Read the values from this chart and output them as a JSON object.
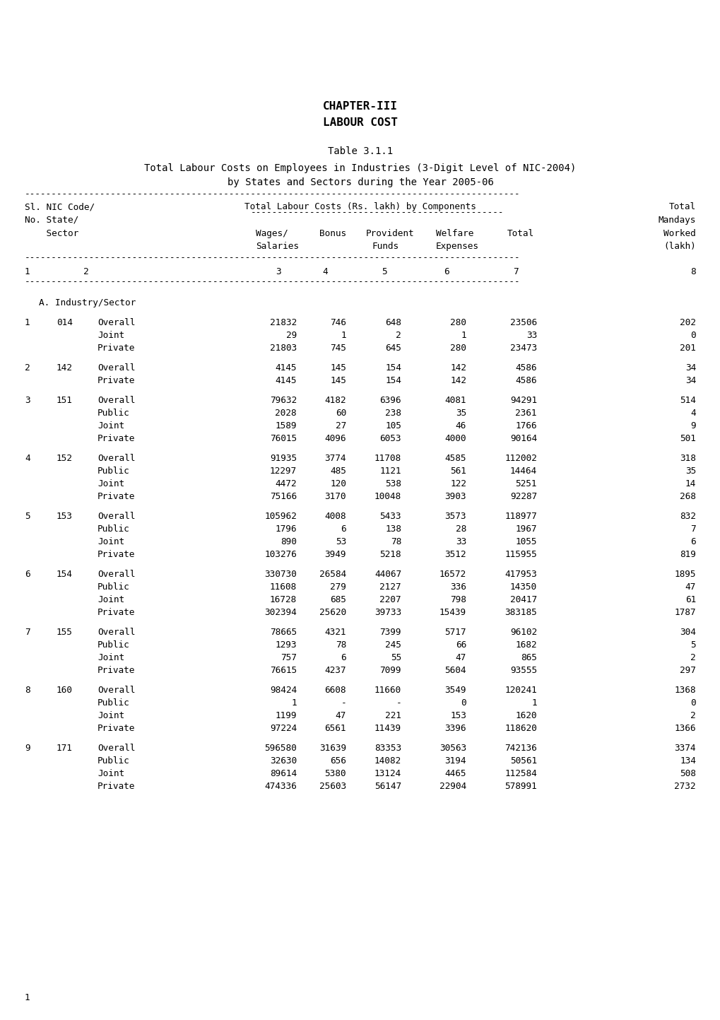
{
  "chapter_title_line1": "CHAPTER-III",
  "chapter_title_line2": "LABOUR COST",
  "table_title": "Table 3.1.1",
  "table_subtitle1": "Total Labour Costs on Employees in Industries (3-Digit Level of NIC-2004)",
  "table_subtitle2": "by States and Sectors during the Year 2005-06",
  "h1_col1": "Sl. NIC Code/",
  "h1_col2": "Total Labour Costs (Rs. lakh) by Components",
  "h1_col3": "Total",
  "h2_col1": "No. State/",
  "h2_col3": "Mandays",
  "h3_col1": "    Sector",
  "h3_wages": "Wages/",
  "h3_bonus": "Bonus",
  "h3_provident": "Provident",
  "h3_welfare": "Welfare",
  "h3_total": "Total",
  "h3_worked": "Worked",
  "h4_wages": "Salaries",
  "h4_provident": "Funds",
  "h4_welfare": "Expenses",
  "h4_worked": "(lakh)",
  "cn1": "1",
  "cn2": "2",
  "cn3": "3",
  "cn4": "4",
  "cn5": "5",
  "cn6": "6",
  "cn7": "7",
  "cn8": "8",
  "section_label": "A. Industry/Sector",
  "rows": [
    {
      "sl": "1",
      "nic": "014",
      "sector": "Overall",
      "wages": "21832",
      "bonus": "746",
      "provident": "648",
      "welfare": "280",
      "total": "23506",
      "mandays": "202"
    },
    {
      "sl": "",
      "nic": "",
      "sector": "Joint",
      "wages": "29",
      "bonus": "1",
      "provident": "2",
      "welfare": "1",
      "total": "33",
      "mandays": "0"
    },
    {
      "sl": "",
      "nic": "",
      "sector": "Private",
      "wages": "21803",
      "bonus": "745",
      "provident": "645",
      "welfare": "280",
      "total": "23473",
      "mandays": "201"
    },
    {
      "sl": "2",
      "nic": "142",
      "sector": "Overall",
      "wages": "4145",
      "bonus": "145",
      "provident": "154",
      "welfare": "142",
      "total": "4586",
      "mandays": "34"
    },
    {
      "sl": "",
      "nic": "",
      "sector": "Private",
      "wages": "4145",
      "bonus": "145",
      "provident": "154",
      "welfare": "142",
      "total": "4586",
      "mandays": "34"
    },
    {
      "sl": "3",
      "nic": "151",
      "sector": "Overall",
      "wages": "79632",
      "bonus": "4182",
      "provident": "6396",
      "welfare": "4081",
      "total": "94291",
      "mandays": "514"
    },
    {
      "sl": "",
      "nic": "",
      "sector": "Public",
      "wages": "2028",
      "bonus": "60",
      "provident": "238",
      "welfare": "35",
      "total": "2361",
      "mandays": "4"
    },
    {
      "sl": "",
      "nic": "",
      "sector": "Joint",
      "wages": "1589",
      "bonus": "27",
      "provident": "105",
      "welfare": "46",
      "total": "1766",
      "mandays": "9"
    },
    {
      "sl": "",
      "nic": "",
      "sector": "Private",
      "wages": "76015",
      "bonus": "4096",
      "provident": "6053",
      "welfare": "4000",
      "total": "90164",
      "mandays": "501"
    },
    {
      "sl": "4",
      "nic": "152",
      "sector": "Overall",
      "wages": "91935",
      "bonus": "3774",
      "provident": "11708",
      "welfare": "4585",
      "total": "112002",
      "mandays": "318"
    },
    {
      "sl": "",
      "nic": "",
      "sector": "Public",
      "wages": "12297",
      "bonus": "485",
      "provident": "1121",
      "welfare": "561",
      "total": "14464",
      "mandays": "35"
    },
    {
      "sl": "",
      "nic": "",
      "sector": "Joint",
      "wages": "4472",
      "bonus": "120",
      "provident": "538",
      "welfare": "122",
      "total": "5251",
      "mandays": "14"
    },
    {
      "sl": "",
      "nic": "",
      "sector": "Private",
      "wages": "75166",
      "bonus": "3170",
      "provident": "10048",
      "welfare": "3903",
      "total": "92287",
      "mandays": "268"
    },
    {
      "sl": "5",
      "nic": "153",
      "sector": "Overall",
      "wages": "105962",
      "bonus": "4008",
      "provident": "5433",
      "welfare": "3573",
      "total": "118977",
      "mandays": "832"
    },
    {
      "sl": "",
      "nic": "",
      "sector": "Public",
      "wages": "1796",
      "bonus": "6",
      "provident": "138",
      "welfare": "28",
      "total": "1967",
      "mandays": "7"
    },
    {
      "sl": "",
      "nic": "",
      "sector": "Joint",
      "wages": "890",
      "bonus": "53",
      "provident": "78",
      "welfare": "33",
      "total": "1055",
      "mandays": "6"
    },
    {
      "sl": "",
      "nic": "",
      "sector": "Private",
      "wages": "103276",
      "bonus": "3949",
      "provident": "5218",
      "welfare": "3512",
      "total": "115955",
      "mandays": "819"
    },
    {
      "sl": "6",
      "nic": "154",
      "sector": "Overall",
      "wages": "330730",
      "bonus": "26584",
      "provident": "44067",
      "welfare": "16572",
      "total": "417953",
      "mandays": "1895"
    },
    {
      "sl": "",
      "nic": "",
      "sector": "Public",
      "wages": "11608",
      "bonus": "279",
      "provident": "2127",
      "welfare": "336",
      "total": "14350",
      "mandays": "47"
    },
    {
      "sl": "",
      "nic": "",
      "sector": "Joint",
      "wages": "16728",
      "bonus": "685",
      "provident": "2207",
      "welfare": "798",
      "total": "20417",
      "mandays": "61"
    },
    {
      "sl": "",
      "nic": "",
      "sector": "Private",
      "wages": "302394",
      "bonus": "25620",
      "provident": "39733",
      "welfare": "15439",
      "total": "383185",
      "mandays": "1787"
    },
    {
      "sl": "7",
      "nic": "155",
      "sector": "Overall",
      "wages": "78665",
      "bonus": "4321",
      "provident": "7399",
      "welfare": "5717",
      "total": "96102",
      "mandays": "304"
    },
    {
      "sl": "",
      "nic": "",
      "sector": "Public",
      "wages": "1293",
      "bonus": "78",
      "provident": "245",
      "welfare": "66",
      "total": "1682",
      "mandays": "5"
    },
    {
      "sl": "",
      "nic": "",
      "sector": "Joint",
      "wages": "757",
      "bonus": "6",
      "provident": "55",
      "welfare": "47",
      "total": "865",
      "mandays": "2"
    },
    {
      "sl": "",
      "nic": "",
      "sector": "Private",
      "wages": "76615",
      "bonus": "4237",
      "provident": "7099",
      "welfare": "5604",
      "total": "93555",
      "mandays": "297"
    },
    {
      "sl": "8",
      "nic": "160",
      "sector": "Overall",
      "wages": "98424",
      "bonus": "6608",
      "provident": "11660",
      "welfare": "3549",
      "total": "120241",
      "mandays": "1368"
    },
    {
      "sl": "",
      "nic": "",
      "sector": "Public",
      "wages": "1",
      "bonus": "-",
      "provident": "-",
      "welfare": "0",
      "total": "1",
      "mandays": "0"
    },
    {
      "sl": "",
      "nic": "",
      "sector": "Joint",
      "wages": "1199",
      "bonus": "47",
      "provident": "221",
      "welfare": "153",
      "total": "1620",
      "mandays": "2"
    },
    {
      "sl": "",
      "nic": "",
      "sector": "Private",
      "wages": "97224",
      "bonus": "6561",
      "provident": "11439",
      "welfare": "3396",
      "total": "118620",
      "mandays": "1366"
    },
    {
      "sl": "9",
      "nic": "171",
      "sector": "Overall",
      "wages": "596580",
      "bonus": "31639",
      "provident": "83353",
      "welfare": "30563",
      "total": "742136",
      "mandays": "3374"
    },
    {
      "sl": "",
      "nic": "",
      "sector": "Public",
      "wages": "32630",
      "bonus": "656",
      "provident": "14082",
      "welfare": "3194",
      "total": "50561",
      "mandays": "134"
    },
    {
      "sl": "",
      "nic": "",
      "sector": "Joint",
      "wages": "89614",
      "bonus": "5380",
      "provident": "13124",
      "welfare": "4465",
      "total": "112584",
      "mandays": "508"
    },
    {
      "sl": "",
      "nic": "",
      "sector": "Private",
      "wages": "474336",
      "bonus": "25603",
      "provident": "56147",
      "welfare": "22904",
      "total": "578991",
      "mandays": "2732"
    }
  ],
  "page_number": "1",
  "font_family": "monospace",
  "bg_color": "#ffffff",
  "text_color": "#000000",
  "fontsize": 9.2,
  "title_fontsize": 11.5,
  "subtitle_fontsize": 10.0
}
